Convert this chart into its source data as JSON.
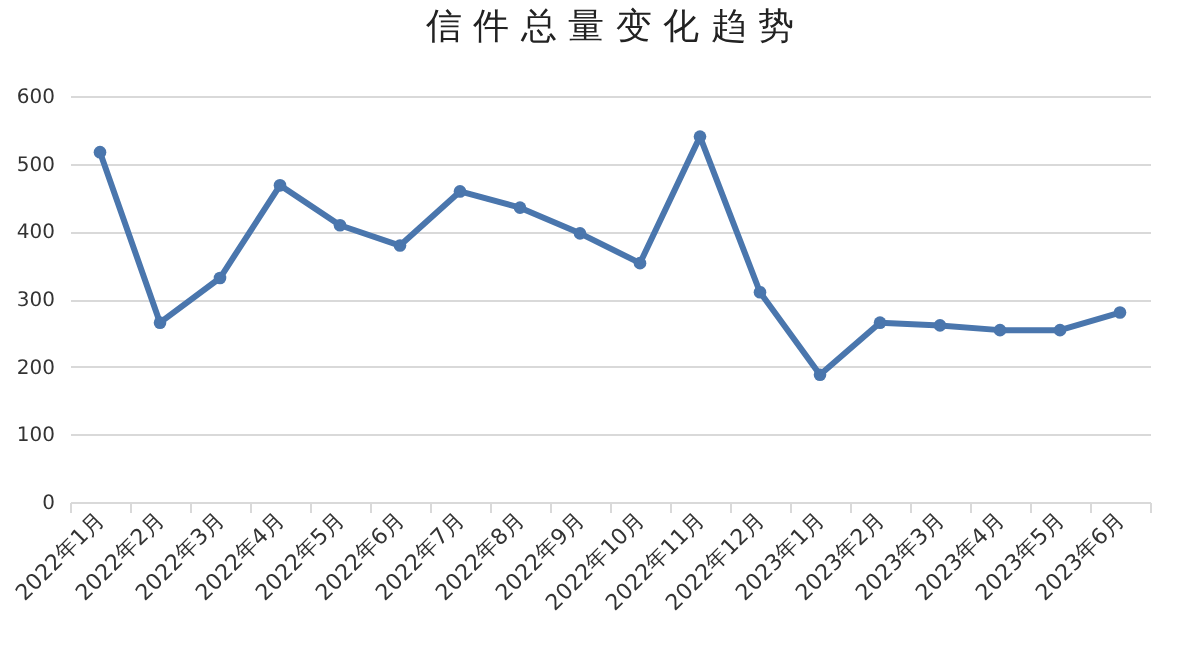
{
  "chart_data": {
    "type": "line",
    "title": "信 件 总 量 变 化 趋 势",
    "categories": [
      "2022年1月",
      "2022年2月",
      "2022年3月",
      "2022年4月",
      "2022年5月",
      "2022年6月",
      "2022年7月",
      "2022年8月",
      "2022年9月",
      "2022年10月",
      "2022年11月",
      "2022年12月",
      "2023年1月",
      "2023年2月",
      "2023年3月",
      "2023年4月",
      "2023年5月",
      "2023年6月"
    ],
    "series": [
      {
        "color": "#4a76ad",
        "values": [
          517,
          265,
          331,
          468,
          409,
          379,
          459,
          435,
          397,
          353,
          540,
          310,
          188,
          265,
          261,
          254,
          254,
          280
        ]
      }
    ],
    "ylim": [
      0,
      600
    ],
    "yticks": [
      0,
      100,
      200,
      300,
      400,
      500,
      600
    ],
    "grid": "y",
    "marker": "circle",
    "line_style": "solid"
  }
}
